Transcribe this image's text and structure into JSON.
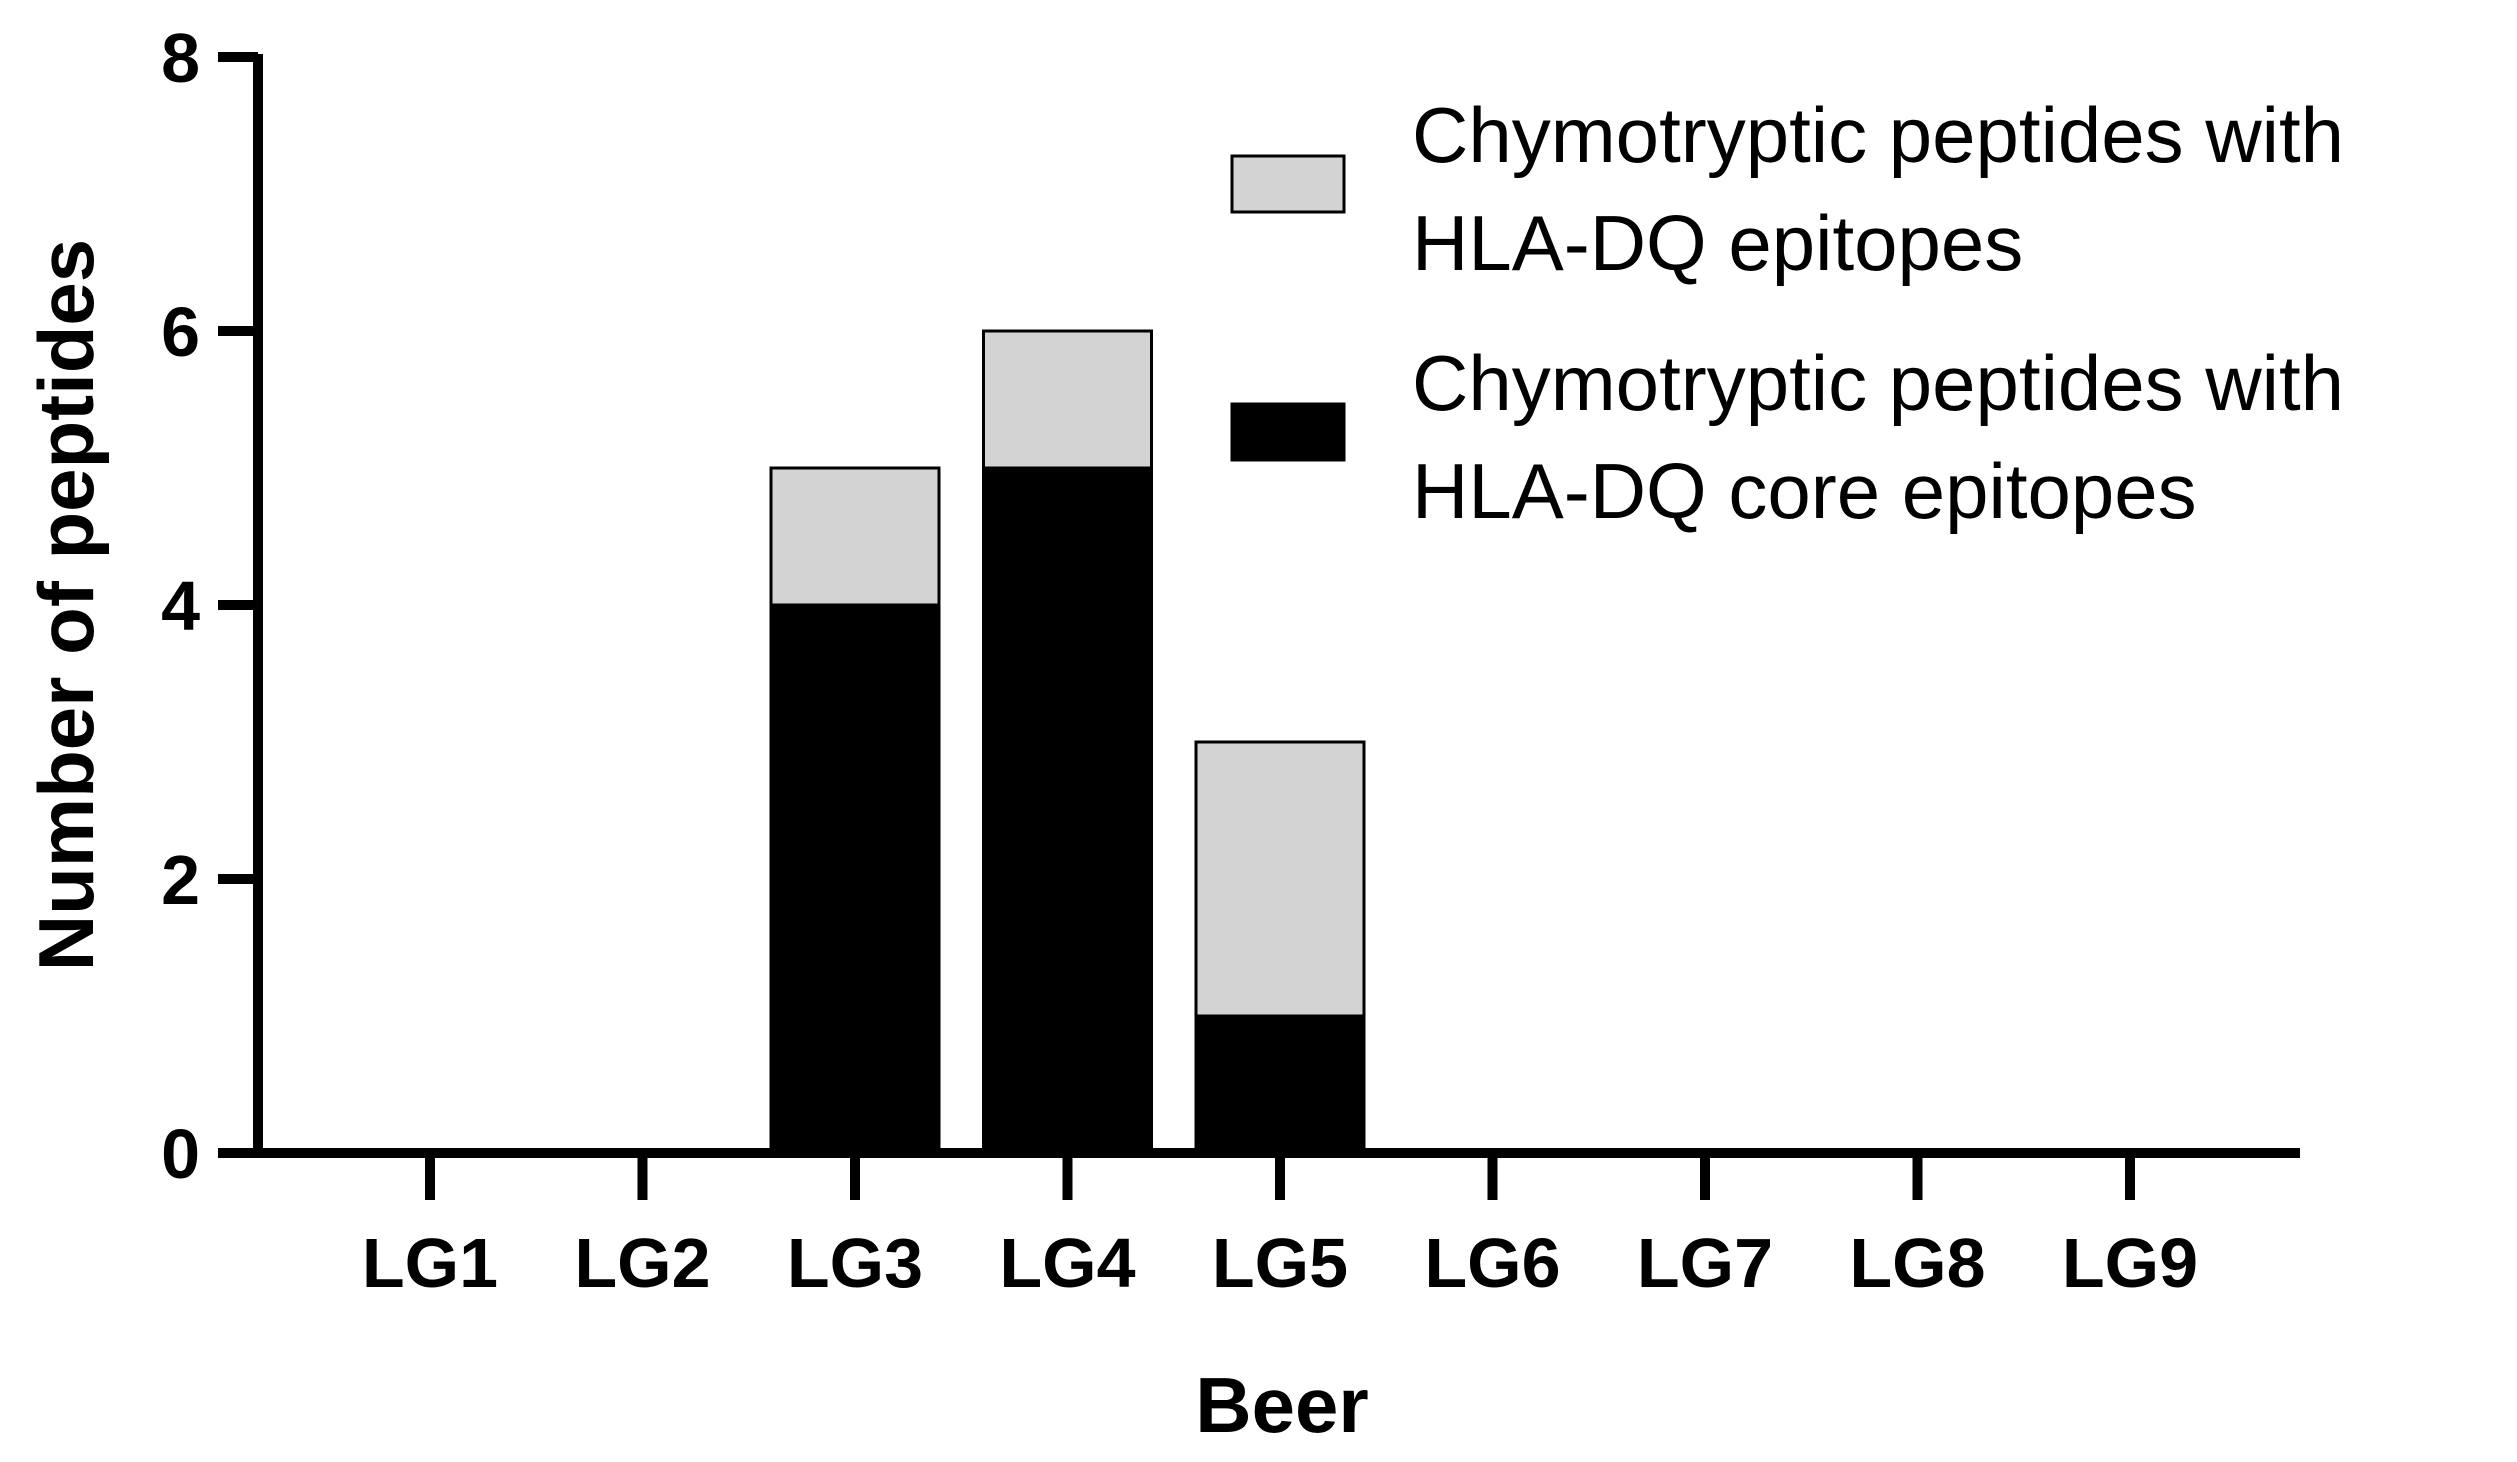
{
  "chart_data": {
    "type": "bar",
    "stacked": true,
    "categories": [
      "LG1",
      "LG2",
      "LG3",
      "LG4",
      "LG5",
      "LG6",
      "LG7",
      "LG8",
      "LG9"
    ],
    "series": [
      {
        "name": "Chymotryptic peptides with HLA-DQ core epitopes",
        "name_lines": [
          "Chymotryptic peptides with",
          "HLA-DQ core epitopes"
        ],
        "values": [
          0,
          0,
          4,
          5,
          1,
          0,
          0,
          0,
          0
        ],
        "color": "#000000"
      },
      {
        "name": "Chymotryptic peptides with HLA-DQ epitopes",
        "name_lines": [
          "Chymotryptic peptides with",
          "HLA-DQ epitopes"
        ],
        "values": [
          0,
          0,
          1,
          1,
          2,
          0,
          0,
          0,
          0
        ],
        "color": "#d3d3d3"
      }
    ],
    "xlabel": "Beer",
    "ylabel": "Number of peptides",
    "ylim": [
      0,
      8
    ],
    "yticks": [
      0,
      2,
      4,
      6,
      8
    ],
    "grid": false,
    "legend_position": "top-right",
    "legend_order": [
      1,
      0
    ]
  }
}
